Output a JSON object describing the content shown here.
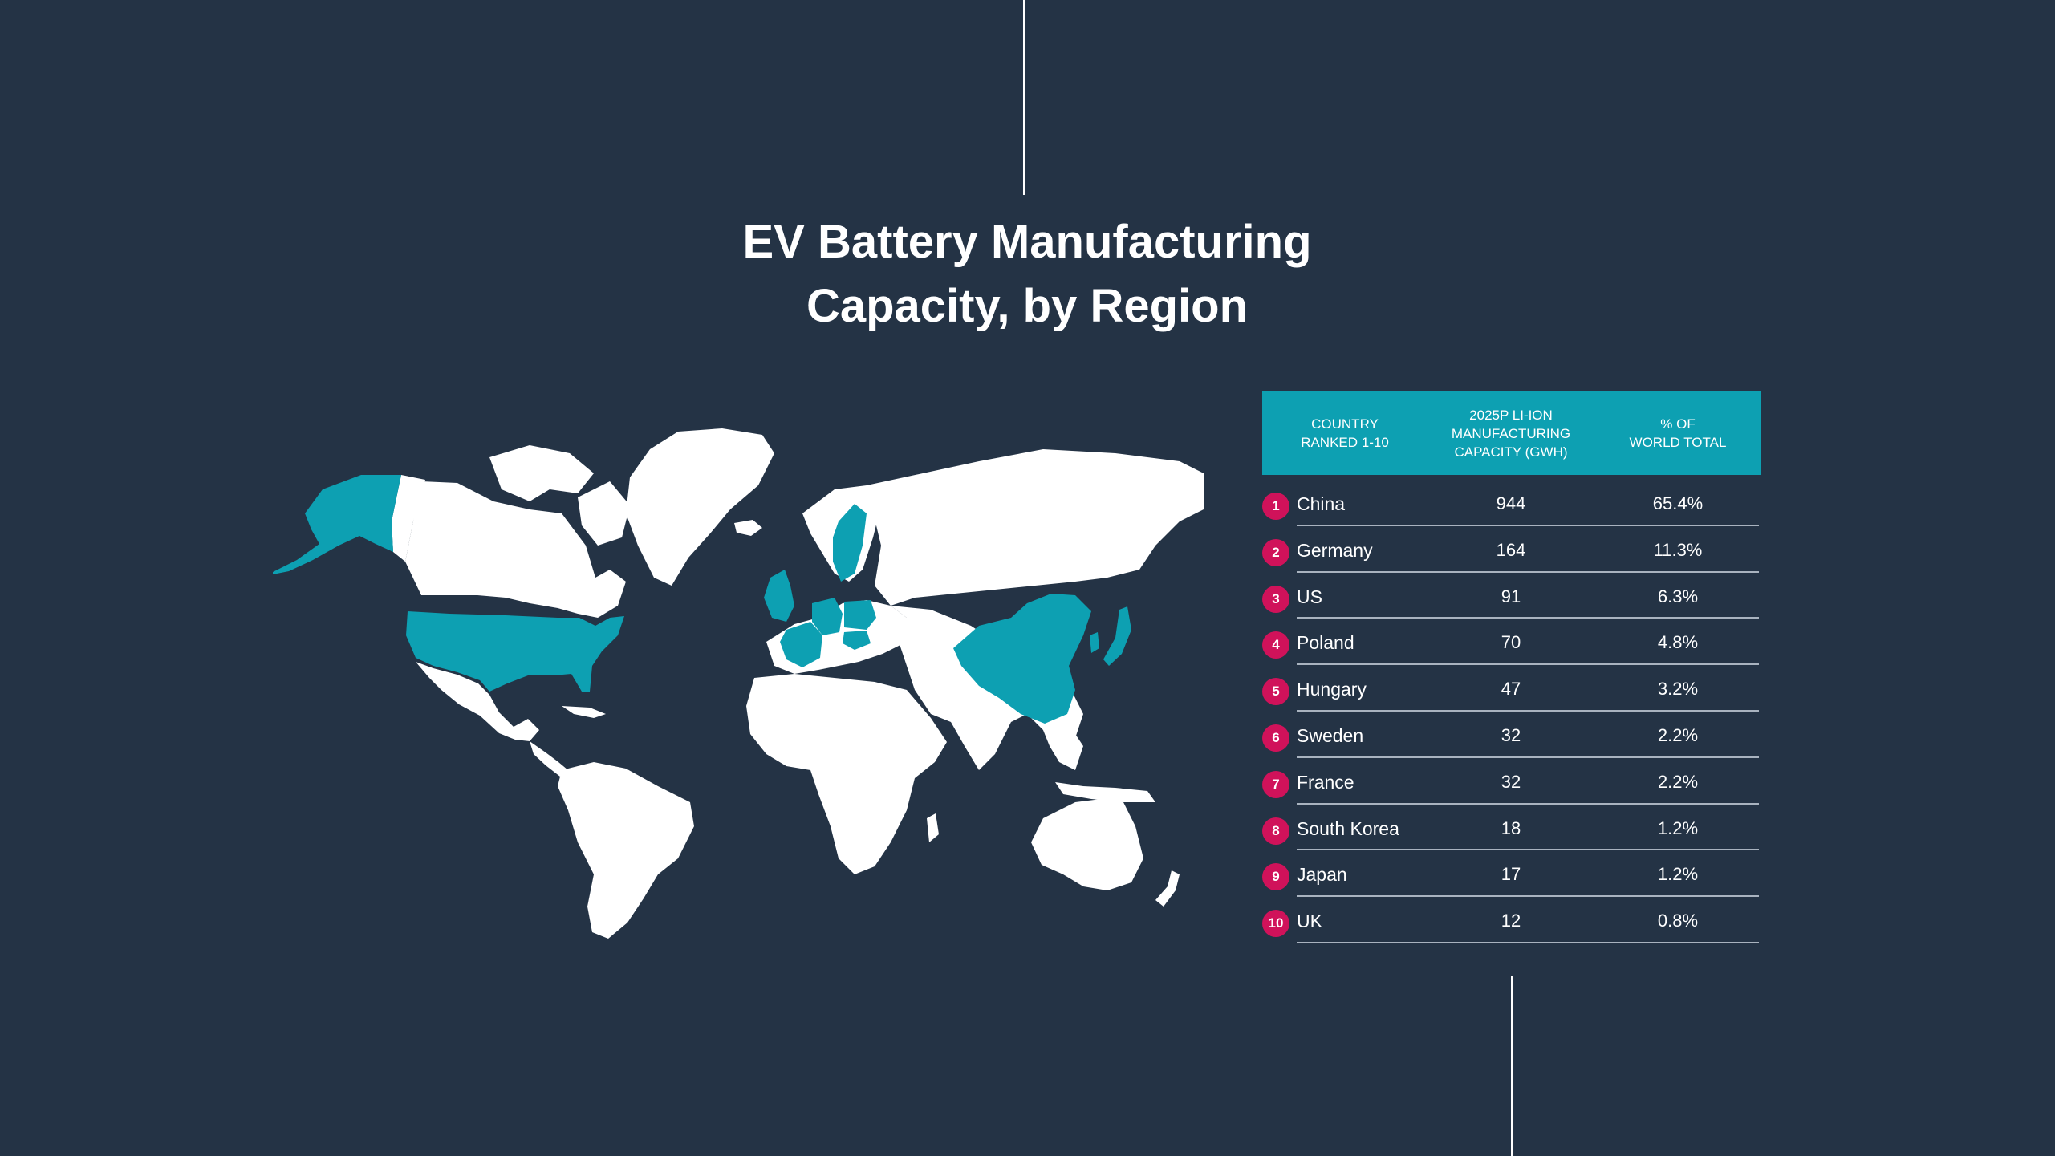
{
  "title_line1": "EV Battery Manufacturing",
  "title_line2": "Capacity, by Region",
  "colors": {
    "background": "#243345",
    "highlight": "#0da0b2",
    "land": "#ffffff",
    "rank_badge": "#d0125a"
  },
  "table": {
    "headers": {
      "country": [
        "COUNTRY",
        "RANKED 1-10"
      ],
      "capacity": [
        "2025P LI-ION",
        "MANUFACTURING",
        "CAPACITY (GWH)"
      ],
      "share": [
        "% OF",
        "WORLD TOTAL"
      ]
    },
    "rows": [
      {
        "rank": "1",
        "country": "China",
        "capacity": "944",
        "share": "65.4%"
      },
      {
        "rank": "2",
        "country": "Germany",
        "capacity": "164",
        "share": "11.3%"
      },
      {
        "rank": "3",
        "country": "US",
        "capacity": "91",
        "share": "6.3%"
      },
      {
        "rank": "4",
        "country": "Poland",
        "capacity": "70",
        "share": "4.8%"
      },
      {
        "rank": "5",
        "country": "Hungary",
        "capacity": "47",
        "share": "3.2%"
      },
      {
        "rank": "6",
        "country": "Sweden",
        "capacity": "32",
        "share": "2.2%"
      },
      {
        "rank": "7",
        "country": "France",
        "capacity": "32",
        "share": "2.2%"
      },
      {
        "rank": "8",
        "country": "South Korea",
        "capacity": "18",
        "share": "1.2%"
      },
      {
        "rank": "9",
        "country": "Japan",
        "capacity": "17",
        "share": "1.2%"
      },
      {
        "rank": "10",
        "country": "UK",
        "capacity": "12",
        "share": "0.8%"
      }
    ]
  },
  "map": {
    "highlighted_regions": [
      "China",
      "Germany",
      "US",
      "Poland",
      "Hungary",
      "Sweden",
      "France",
      "South Korea",
      "Japan",
      "UK"
    ]
  }
}
